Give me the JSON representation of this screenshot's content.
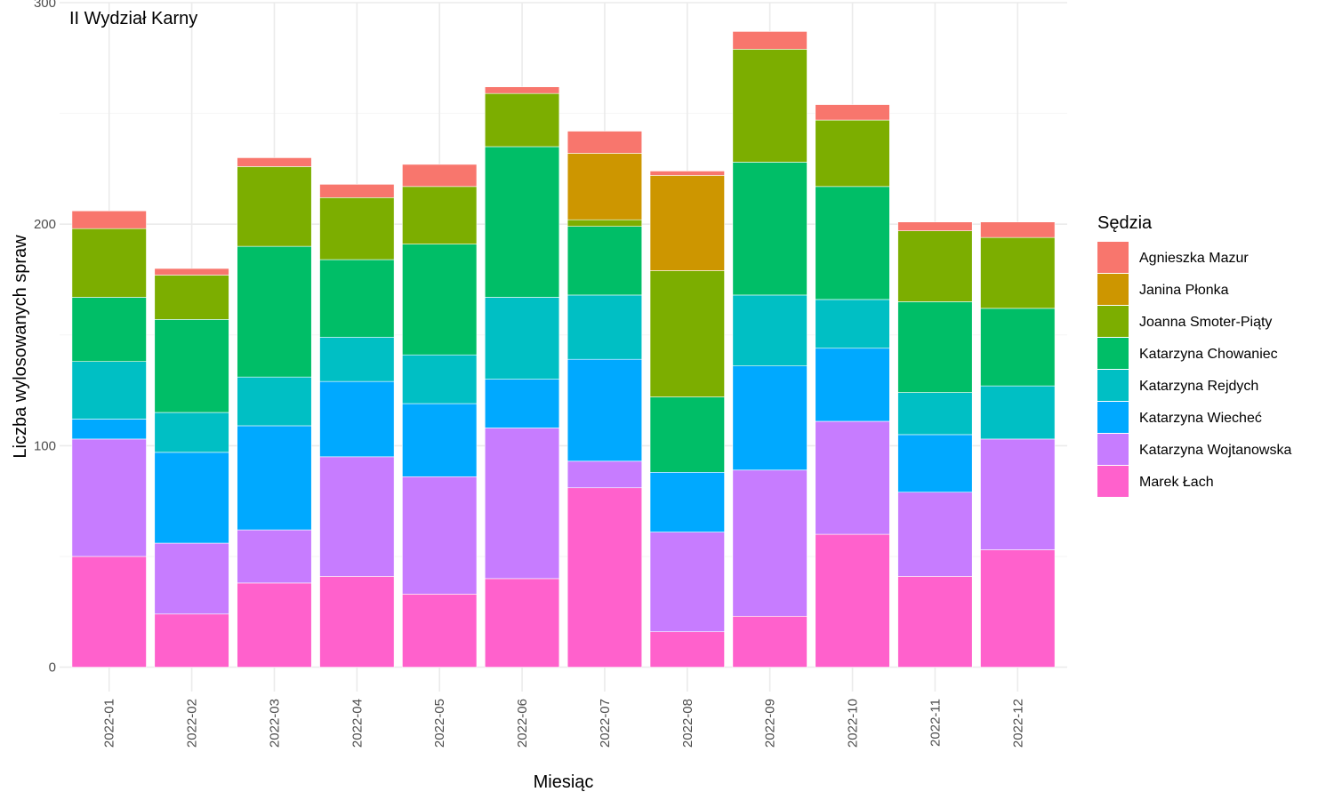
{
  "chart_data": {
    "type": "bar",
    "stacked": true,
    "title": "II Wydział Karny",
    "xlabel": "Miesiąc",
    "ylabel": "Liczba wylosowanych spraw",
    "ylim": [
      -11,
      300
    ],
    "yticks": [
      0,
      100,
      200,
      300
    ],
    "grid": true,
    "legend_title": "Sędzia",
    "legend_position": "right",
    "categories": [
      "2022-01",
      "2022-02",
      "2022-03",
      "2022-04",
      "2022-05",
      "2022-06",
      "2022-07",
      "2022-08",
      "2022-09",
      "2022-10",
      "2022-11",
      "2022-12"
    ],
    "series": [
      {
        "name": "Marek Łach",
        "color": "#FF61CC",
        "values": [
          50,
          24,
          38,
          41,
          33,
          40,
          81,
          16,
          23,
          60,
          41,
          53
        ]
      },
      {
        "name": "Katarzyna Wojtanowska",
        "color": "#C77CFF",
        "values": [
          53,
          32,
          24,
          54,
          53,
          68,
          12,
          45,
          66,
          51,
          38,
          50
        ]
      },
      {
        "name": "Katarzyna Wiecheć",
        "color": "#00A9FF",
        "values": [
          9,
          41,
          47,
          34,
          33,
          22,
          46,
          27,
          47,
          33,
          26,
          0
        ]
      },
      {
        "name": "Katarzyna Rejdych",
        "color": "#00BFC4",
        "values": [
          26,
          18,
          22,
          20,
          22,
          37,
          29,
          0,
          32,
          22,
          19,
          24
        ]
      },
      {
        "name": "Katarzyna Chowaniec",
        "color": "#00BE67",
        "values": [
          29,
          42,
          59,
          35,
          50,
          68,
          31,
          34,
          60,
          51,
          41,
          35
        ]
      },
      {
        "name": "Joanna Smoter-Piąty",
        "color": "#7CAE00",
        "values": [
          31,
          20,
          36,
          28,
          26,
          24,
          3,
          57,
          51,
          30,
          32,
          32
        ]
      },
      {
        "name": "Janina Płonka",
        "color": "#CD9600",
        "values": [
          0,
          0,
          0,
          0,
          0,
          0,
          30,
          43,
          0,
          0,
          0,
          0
        ]
      },
      {
        "name": "Agnieszka Mazur",
        "color": "#F8766D",
        "values": [
          8,
          3,
          4,
          6,
          10,
          3,
          10,
          2,
          8,
          7,
          4,
          7
        ]
      }
    ],
    "legend_order": [
      "Agnieszka Mazur",
      "Janina Płonka",
      "Joanna Smoter-Piąty",
      "Katarzyna Chowaniec",
      "Katarzyna Rejdych",
      "Katarzyna Wiecheć",
      "Katarzyna Wojtanowska",
      "Marek Łach"
    ]
  }
}
